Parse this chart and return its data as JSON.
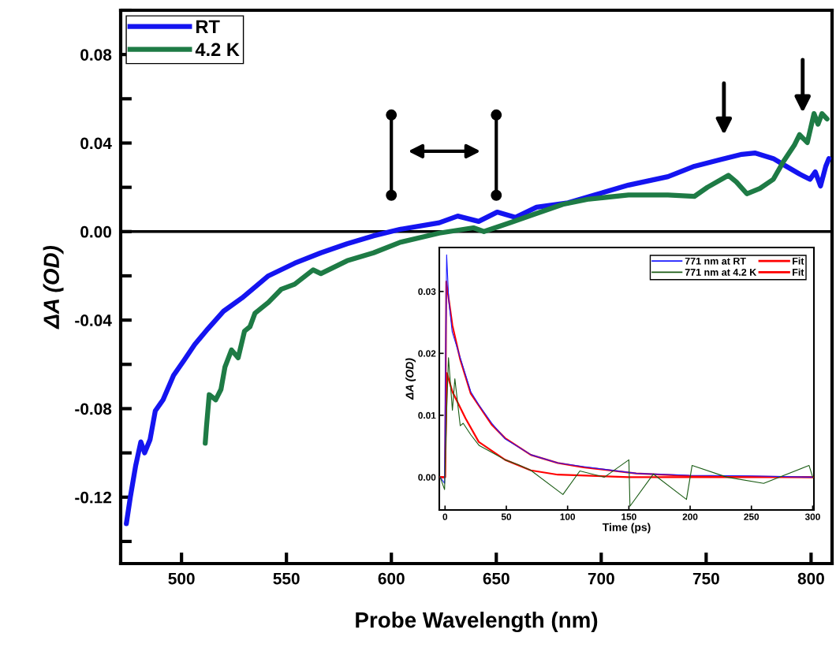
{
  "chart_data": [
    {
      "type": "line",
      "xlabel": "Probe Wavelength (nm)",
      "ylabel": "ΔA (OD)",
      "legend": "top left",
      "xlim": [
        471,
        810
      ],
      "ylim": [
        -0.15,
        0.1
      ],
      "xticks": [
        500,
        550,
        600,
        650,
        700,
        750,
        800
      ],
      "yticks": [
        {
          "value": -0.14,
          "label": null
        },
        -0.12,
        {
          "value": -0.1,
          "label": null
        },
        -0.08,
        {
          "value": -0.06,
          "label": null
        },
        -0.04,
        {
          "value": -0.02,
          "label": null
        },
        {
          "value": 0,
          "label": "0.00"
        },
        {
          "value": 0.02,
          "label": null
        },
        0.04,
        {
          "value": 0.06,
          "label": null
        },
        0.08,
        {
          "value": 0.1,
          "label": null
        }
      ],
      "ref_lines": [
        {
          "axis": "y",
          "value": 0,
          "color": "#000000"
        }
      ],
      "series": [
        {
          "name": "RT",
          "color": "#1414f0",
          "x": [
            473.7,
            475.6,
            478.1,
            480.6,
            482.4,
            485,
            487.5,
            491.2,
            496.2,
            501.3,
            506.3,
            512.5,
            520,
            528.8,
            541.4,
            553.9,
            566.4,
            578.9,
            591.5,
            604,
            622.8,
            631.6,
            641.6,
            650.4,
            659.1,
            669.2,
            684.2,
            696.7,
            713,
            731.8,
            744.4,
            756.8,
            767,
            773.2,
            782,
            788.2,
            794.5,
            799.5,
            802,
            804.5,
            807,
            808.5
          ],
          "values": [
            -0.132,
            -0.12,
            -0.106,
            -0.095,
            -0.1,
            -0.094,
            -0.081,
            -0.076,
            -0.065,
            -0.058,
            -0.051,
            -0.044,
            -0.036,
            -0.03,
            -0.02,
            -0.0143,
            -0.0096,
            -0.0055,
            -0.0019,
            0.001,
            0.004,
            0.007,
            0.0046,
            0.0088,
            0.0064,
            0.011,
            0.013,
            0.0165,
            0.021,
            0.0248,
            0.0295,
            0.0325,
            0.0349,
            0.0355,
            0.033,
            0.0295,
            0.026,
            0.0236,
            0.027,
            0.0206,
            0.0295,
            0.033
          ]
        },
        {
          "name": "4.2 K",
          "color": "#1e7b45",
          "x": [
            511.3,
            511.9,
            513.2,
            516.3,
            518.8,
            520.7,
            523.8,
            527,
            530,
            532.6,
            535,
            541.4,
            547.6,
            553.9,
            562.7,
            566.4,
            578.9,
            591.5,
            604,
            622.8,
            639.1,
            644.1,
            656.6,
            669.2,
            681.7,
            694.2,
            713,
            731.8,
            744.4,
            750.6,
            760.6,
            764.4,
            769.4,
            775.6,
            782,
            787,
            792,
            794.5,
            798.2,
            801.4,
            803.3,
            805.2,
            807.6
          ],
          "values": [
            -0.0956,
            -0.088,
            -0.0737,
            -0.076,
            -0.0713,
            -0.0612,
            -0.0535,
            -0.057,
            -0.045,
            -0.043,
            -0.0369,
            -0.032,
            -0.026,
            -0.0238,
            -0.0173,
            -0.019,
            -0.0132,
            -0.0096,
            -0.0049,
            -0.0007,
            0.0017,
            0.0,
            0.004,
            0.0082,
            0.0123,
            0.0147,
            0.0165,
            0.0165,
            0.0159,
            0.02,
            0.0254,
            0.0224,
            0.0171,
            0.0195,
            0.0236,
            0.0319,
            0.039,
            0.0438,
            0.0402,
            0.0533,
            0.0485,
            0.0533,
            0.0509
          ]
        }
      ]
    },
    {
      "type": "line",
      "xlabel": "Time (ps)",
      "ylabel": "ΔA (OD)",
      "legend": "top right",
      "xlim": [
        -4.7,
        301
      ],
      "ylim": [
        -0.0053,
        0.0371
      ],
      "xticks": [
        0,
        50,
        100,
        150,
        200,
        250,
        300
      ],
      "yticks": [
        {
          "value": 0,
          "label": "0.00"
        },
        0.01,
        0.02,
        0.03
      ],
      "series": [
        {
          "name": "771 nm at RT",
          "color": "#1a1aff",
          "x": [
            -4,
            -0.4,
            0.5,
            1.3,
            3,
            5.8,
            12.4,
            21,
            27.5,
            38.2,
            48.9,
            70.4,
            91.9,
            113.3,
            156.3,
            199.2,
            250,
            300
          ],
          "values": [
            0.0,
            -0.001,
            0.02,
            0.0359,
            0.0286,
            0.0235,
            0.0193,
            0.0138,
            0.0117,
            0.0087,
            0.0062,
            0.0036,
            0.0023,
            0.0017,
            0.0006,
            0.0003,
            0.0002,
            0.0
          ]
        },
        {
          "name": "771 nm at 4.2 K",
          "color": "#1a5c14",
          "x": [
            -4,
            -0.4,
            1.5,
            2.8,
            6,
            8,
            12.4,
            14.8,
            21.2,
            27.9,
            40,
            49,
            60,
            70,
            96.2,
            110,
            130,
            150,
            150.9,
            170,
            197,
            201.6,
            230,
            260,
            297,
            300
          ],
          "values": [
            0.0,
            -0.002,
            0.012,
            0.0193,
            0.0108,
            0.0159,
            0.0083,
            0.0087,
            0.0068,
            0.0051,
            0.0038,
            0.0028,
            0.002,
            0.0011,
            -0.0028,
            0.001,
            0.0,
            0.0028,
            -0.0047,
            0.0005,
            -0.0036,
            0.0019,
            0.0,
            -0.001,
            0.0019,
            0.0
          ]
        },
        {
          "name": "Fit",
          "color": "#ff0000",
          "x": [
            -4,
            0,
            1,
            6,
            12.4,
            21,
            38,
            49,
            70,
            92,
            113,
            156,
            200,
            300
          ],
          "values": [
            0.0,
            0.0,
            0.0316,
            0.0245,
            0.019,
            0.0135,
            0.0085,
            0.0063,
            0.0036,
            0.0023,
            0.0016,
            0.0006,
            0.0002,
            0.0
          ]
        },
        {
          "name": "Fit",
          "color": "#ff0000",
          "x": [
            -4,
            0,
            1.5,
            6,
            16.7,
            27.5,
            49,
            70,
            92,
            150,
            300
          ],
          "values": [
            0.0,
            0.0,
            0.0168,
            0.0138,
            0.0095,
            0.0057,
            0.0028,
            0.0011,
            0.0004,
            0.0,
            0.0
          ]
        }
      ]
    }
  ]
}
